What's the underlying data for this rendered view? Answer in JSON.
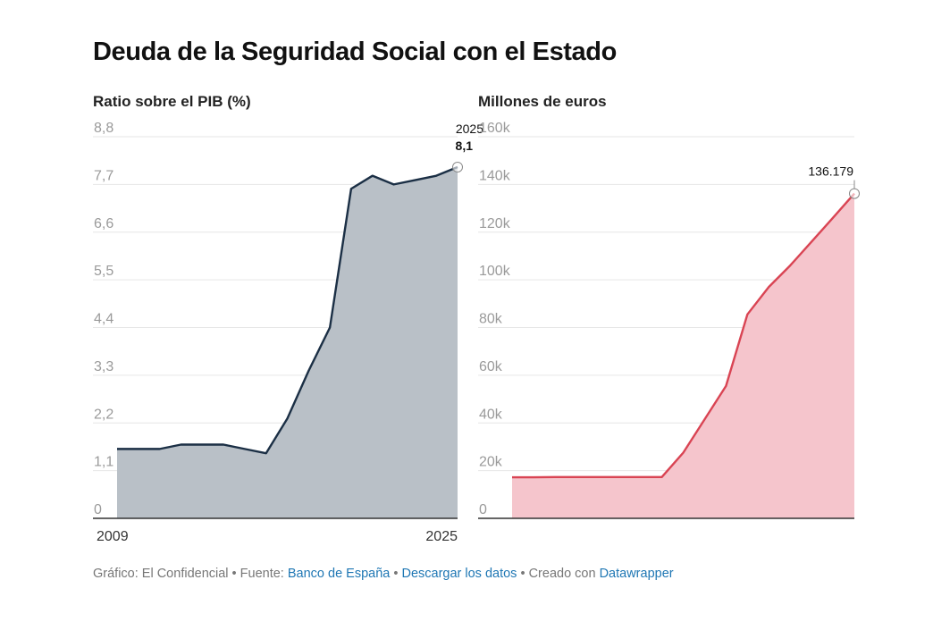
{
  "title": "Deuda de la Seguridad Social con el Estado",
  "footer": {
    "prefix": "Gráfico: El Confidencial",
    "sep": "•",
    "source_label": "Fuente:",
    "source_link": "Banco de España",
    "download_link": "Descargar los datos",
    "created_label": "Creado con",
    "created_link": "Datawrapper"
  },
  "chart_data": [
    {
      "type": "area",
      "title": "",
      "ylabel": "Ratio sobre el PIB (%)",
      "x": [
        2009,
        2010,
        2011,
        2012,
        2013,
        2014,
        2015,
        2016,
        2017,
        2018,
        2019,
        2020,
        2021,
        2022,
        2023,
        2024,
        2025
      ],
      "values": [
        1.6,
        1.6,
        1.6,
        1.7,
        1.7,
        1.7,
        1.6,
        1.5,
        2.3,
        3.4,
        4.4,
        7.6,
        7.9,
        7.7,
        7.8,
        7.9,
        8.1
      ],
      "ylim": [
        0,
        8.8
      ],
      "yticks": [
        "0",
        "1,1",
        "2,2",
        "3,3",
        "4,4",
        "5,5",
        "6,6",
        "7,7",
        "8,8"
      ],
      "ytick_values": [
        0,
        1.1,
        2.2,
        3.3,
        4.4,
        5.5,
        6.6,
        7.7,
        8.8
      ],
      "xticks": [
        "2009",
        "2025"
      ],
      "xtick_values": [
        2009,
        2025
      ],
      "annotation": {
        "year": "2025",
        "value": "8,1"
      },
      "color": "#1b2f45",
      "fill": "#b9c0c7",
      "grid": true
    },
    {
      "type": "area",
      "title": "",
      "ylabel": "Millones de euros",
      "x": [
        2009,
        2010,
        2011,
        2012,
        2013,
        2014,
        2015,
        2016,
        2017,
        2018,
        2019,
        2020,
        2021,
        2022,
        2023,
        2024,
        2025
      ],
      "values": [
        17200,
        17200,
        17300,
        17300,
        17300,
        17300,
        17300,
        17300,
        27500,
        41500,
        55500,
        85500,
        97000,
        106000,
        116000,
        126000,
        136179
      ],
      "ylim": [
        0,
        160000
      ],
      "yticks": [
        "0",
        "20k",
        "40k",
        "60k",
        "80k",
        "100k",
        "120k",
        "140k",
        "160k"
      ],
      "ytick_values": [
        0,
        20000,
        40000,
        60000,
        80000,
        100000,
        120000,
        140000,
        160000
      ],
      "annotation": {
        "value": "136.179"
      },
      "color": "#d94453",
      "fill": "#f5c5cc",
      "grid": true
    }
  ]
}
